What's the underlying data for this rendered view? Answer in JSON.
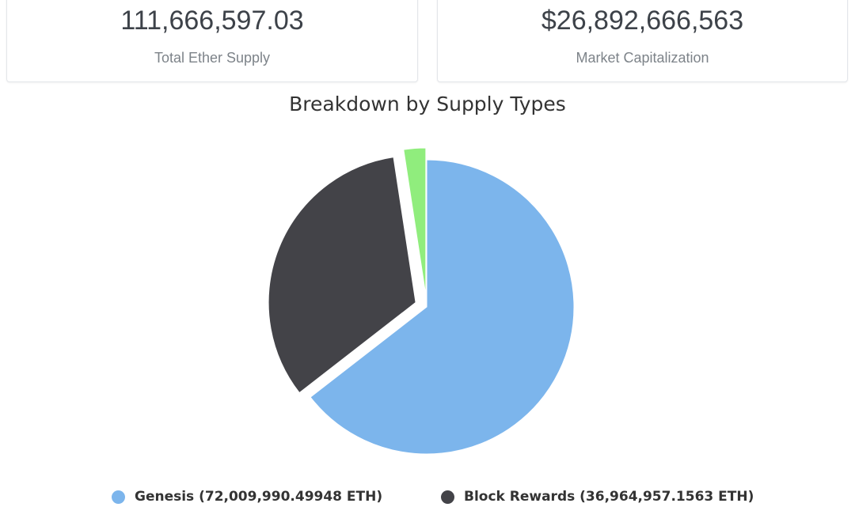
{
  "stats": {
    "supply_value": "111,666,597.03",
    "supply_label": "Total Ether Supply",
    "market_cap_value": "$26,892,666,563",
    "market_cap_label": "Market Capitalization"
  },
  "chart_data": {
    "type": "pie",
    "title": "Breakdown by Supply Types",
    "slices": [
      {
        "name": "Genesis",
        "legend_label": "Genesis (72,009,990.49948 ETH)",
        "value": 72009990.49948,
        "color": "#7cb5ec",
        "exploded": false
      },
      {
        "name": "Block Rewards",
        "legend_label": "Block Rewards (36,964,957.1563 ETH)",
        "value": 36964957.1563,
        "color": "#434348",
        "exploded": true
      },
      {
        "name": "",
        "legend_label": "",
        "value": 2691649.37,
        "color": "#90ed7d",
        "exploded": true
      }
    ],
    "legend": "bottom",
    "start_angle_deg": 0,
    "direction": "clockwise"
  }
}
